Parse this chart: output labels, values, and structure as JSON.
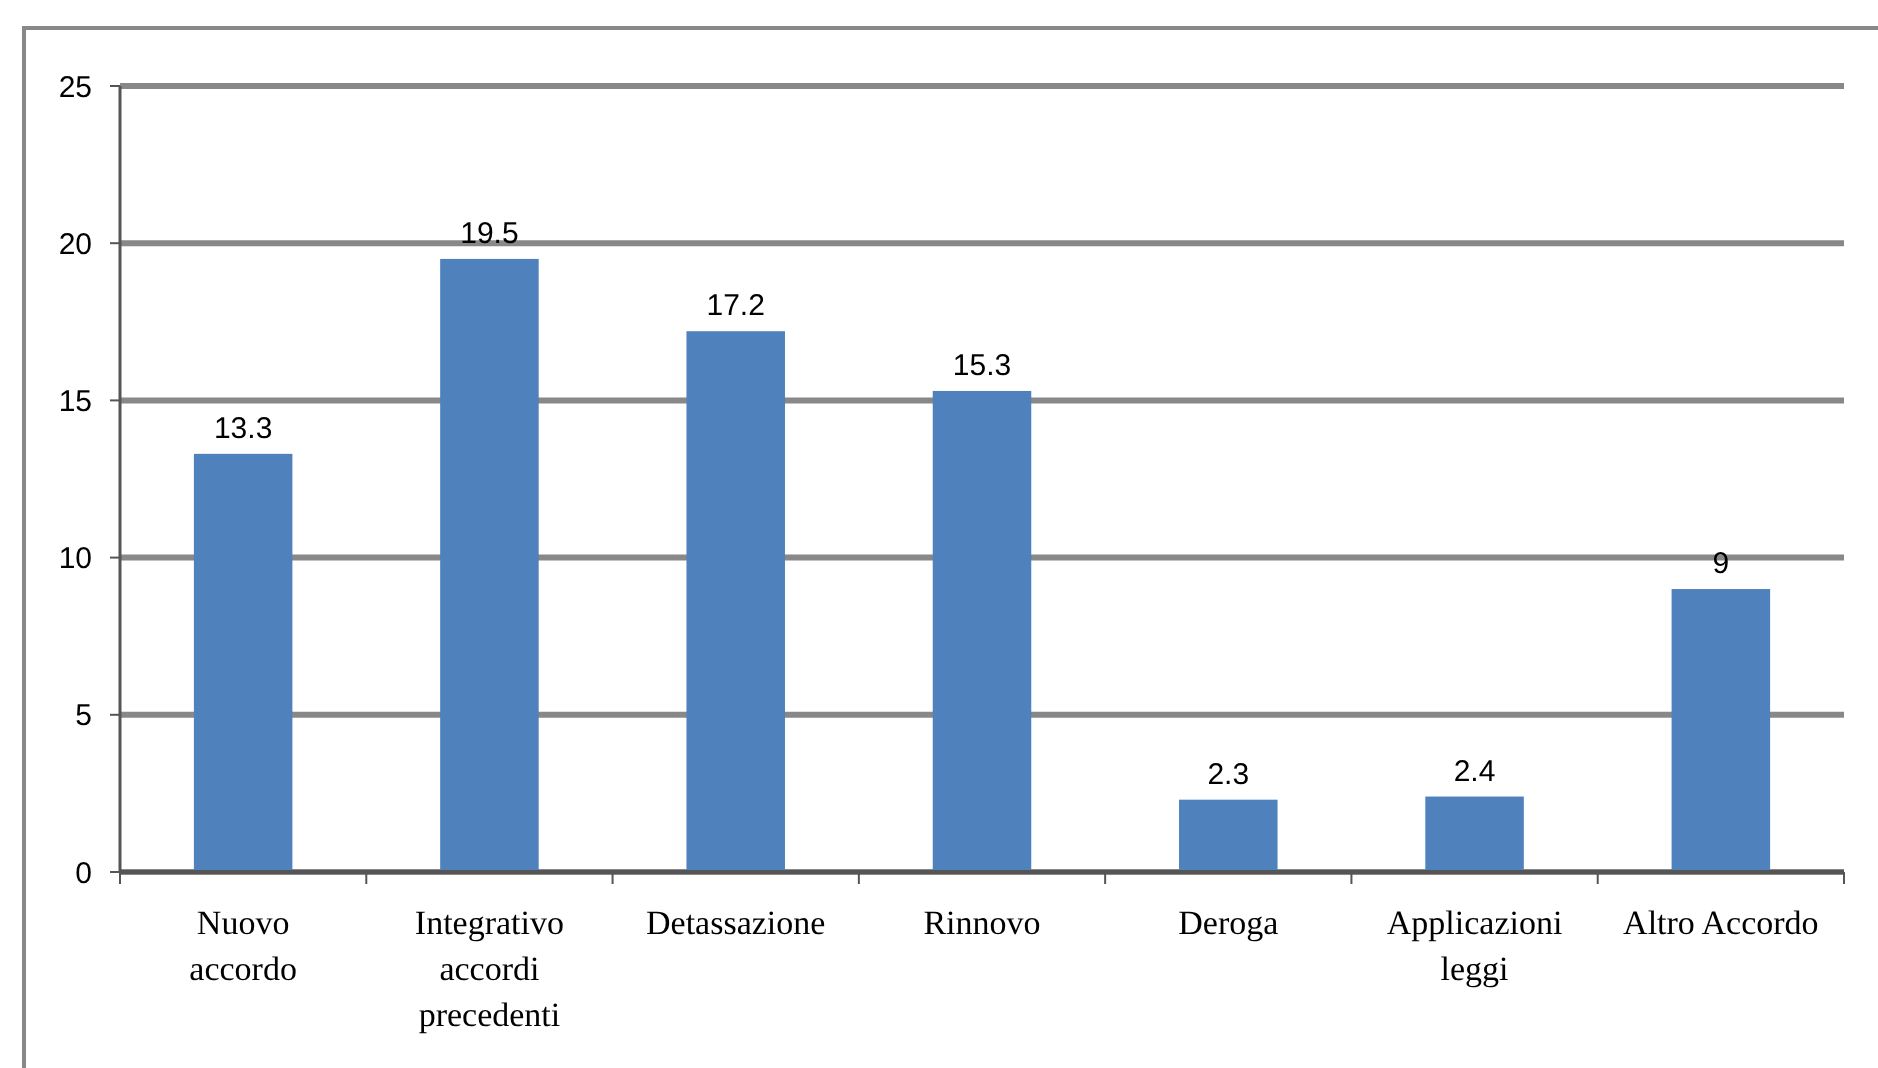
{
  "chart_data": {
    "type": "bar",
    "categories": [
      "Nuovo\naccordo",
      "Integrativo\naccordi\nprecedenti",
      "Detassazione",
      "Rinnovo",
      "Deroga",
      "Applicazioni\nleggi",
      "Altro Accordo"
    ],
    "values": [
      13.3,
      19.5,
      17.2,
      15.3,
      2.3,
      2.4,
      9
    ],
    "color": "#4f81bd",
    "ylim": [
      0,
      25
    ],
    "yticks": [
      0,
      5,
      10,
      15,
      20,
      25
    ],
    "grid": "y",
    "data_labels": true
  }
}
